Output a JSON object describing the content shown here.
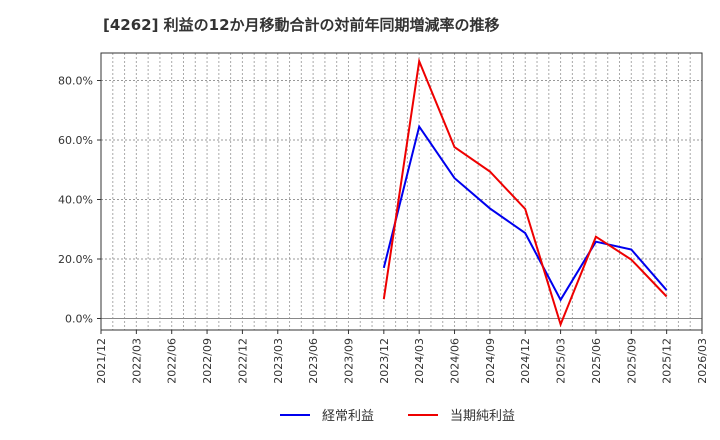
{
  "title": "[4262]  利益の12か月移動合計の対前年同期増減率の推移",
  "colors": {
    "series1": "#0000ee",
    "series2": "#ee0000",
    "grid": "#999999",
    "axis": "#333333"
  },
  "legend": [
    {
      "label": "経常利益",
      "color": "#0000ee"
    },
    {
      "label": "当期純利益",
      "color": "#ee0000"
    }
  ],
  "chart_data": {
    "type": "line",
    "title": "[4262]  利益の12か月移動合計の対前年同期増減率の推移",
    "xlabel": "",
    "ylabel": "",
    "x_ticks": [
      "2021/12",
      "2022/03",
      "2022/06",
      "2022/09",
      "2022/12",
      "2023/03",
      "2023/06",
      "2023/09",
      "2023/12",
      "2024/03",
      "2024/06",
      "2024/09",
      "2024/12",
      "2025/03",
      "2025/06",
      "2025/09",
      "2025/12",
      "2026/03"
    ],
    "y_ticks": [
      "0.0%",
      "20.0%",
      "40.0%",
      "60.0%",
      "80.0%"
    ],
    "ylim": [
      -4,
      90
    ],
    "grid": true,
    "legend_position": "bottom",
    "x": [
      "2023/12",
      "2024/03",
      "2024/06",
      "2024/09",
      "2024/12",
      "2025/03",
      "2025/06",
      "2025/09",
      "2025/12"
    ],
    "series": [
      {
        "name": "経常利益",
        "color": "#0000ee",
        "values": [
          17.0,
          64.5,
          47.2,
          37.0,
          28.7,
          6.3,
          25.8,
          23.2,
          9.5
        ]
      },
      {
        "name": "当期純利益",
        "color": "#ee0000",
        "values": [
          6.5,
          86.5,
          57.6,
          49.4,
          36.8,
          -2.0,
          27.5,
          19.8,
          7.4
        ]
      }
    ]
  }
}
